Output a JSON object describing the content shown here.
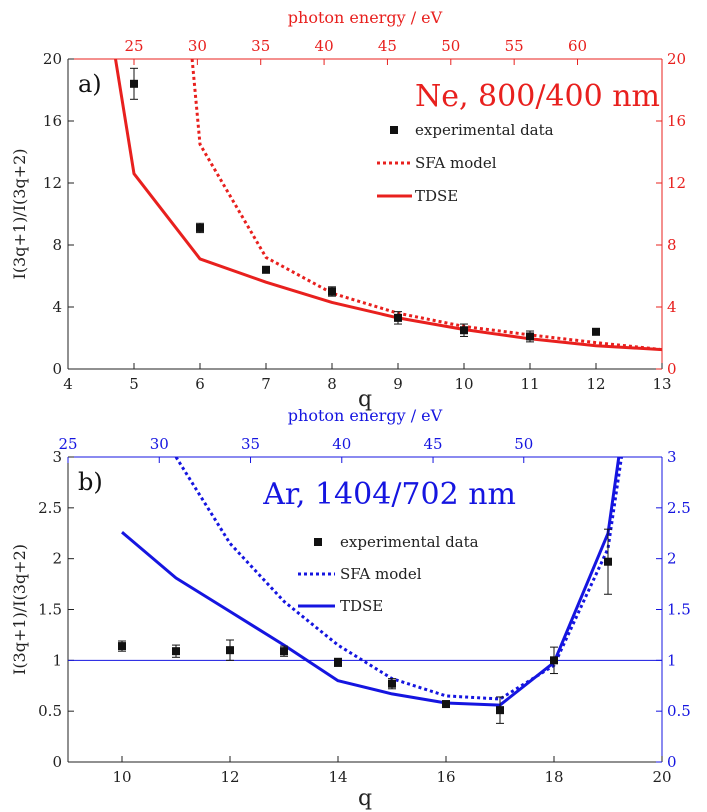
{
  "chart_data": [
    {
      "type": "line",
      "panel_label": "a)",
      "annotation": "Ne, 800/400 nm",
      "color": "#e8201e",
      "xlabel": "q",
      "ylabel": "I(3q+1)/I(3q+2)",
      "top_axis_label": "photon energy / eV",
      "xlim": [
        4,
        13
      ],
      "ylim": [
        0,
        20
      ],
      "x_ticks": [
        4,
        5,
        6,
        7,
        8,
        9,
        10,
        11,
        12,
        13
      ],
      "x_tick_labels": [
        "4",
        "5",
        "6",
        "7",
        "8",
        "9",
        "10",
        "11",
        "12",
        "13"
      ],
      "y_ticks": [
        0,
        4,
        8,
        12,
        16,
        20
      ],
      "y_tick_labels": [
        "0",
        "4",
        "8",
        "12",
        "16",
        "20"
      ],
      "top_ticks": [
        {
          "q": 5.0,
          "label": "25"
        },
        {
          "q": 5.96,
          "label": "30"
        },
        {
          "q": 6.92,
          "label": "35"
        },
        {
          "q": 7.88,
          "label": "40"
        },
        {
          "q": 8.84,
          "label": "45"
        },
        {
          "q": 9.8,
          "label": "50"
        },
        {
          "q": 10.76,
          "label": "55"
        },
        {
          "q": 11.72,
          "label": "60"
        }
      ],
      "legend": {
        "position": "right",
        "entries": [
          "experimental data",
          "SFA model",
          "TDSE"
        ]
      },
      "series": [
        {
          "name": "experimental data",
          "kind": "points",
          "x": [
            5,
            6,
            7,
            8,
            9,
            10,
            11,
            12
          ],
          "y": [
            18.4,
            9.1,
            6.4,
            5.0,
            3.3,
            2.5,
            2.1,
            2.4
          ],
          "err": [
            1.0,
            0.3,
            0.2,
            0.3,
            0.4,
            0.4,
            0.35,
            0.15
          ]
        },
        {
          "name": "SFA model",
          "kind": "dotted",
          "x": [
            5.88,
            6,
            7,
            8,
            9,
            10,
            11,
            12,
            13
          ],
          "y": [
            20,
            14.5,
            7.2,
            4.9,
            3.6,
            2.75,
            2.2,
            1.7,
            1.25
          ]
        },
        {
          "name": "TDSE",
          "kind": "solid",
          "x": [
            4.72,
            5,
            6,
            7,
            8,
            9,
            10,
            11,
            12,
            13
          ],
          "y": [
            20,
            12.6,
            7.1,
            5.6,
            4.3,
            3.3,
            2.55,
            1.95,
            1.5,
            1.25
          ]
        }
      ]
    },
    {
      "type": "line",
      "panel_label": "b)",
      "annotation": "Ar, 1404/702 nm",
      "color": "#1515e0",
      "xlabel": "q",
      "ylabel": "I(3q+1)/I(3q+2)",
      "top_axis_label": "photon energy / eV",
      "xlim": [
        9,
        20
      ],
      "ylim": [
        0,
        3
      ],
      "x_ticks": [
        10,
        12,
        14,
        16,
        18,
        20
      ],
      "x_tick_labels": [
        "10",
        "12",
        "14",
        "16",
        "18",
        "20"
      ],
      "y_ticks": [
        0,
        0.5,
        1,
        1.5,
        2,
        2.5,
        3
      ],
      "y_tick_labels": [
        "0",
        "0.5",
        "1",
        "1.5",
        "2",
        "2.5",
        "3"
      ],
      "top_ticks": [
        {
          "q": 9.0,
          "label": "25"
        },
        {
          "q": 10.69,
          "label": "30"
        },
        {
          "q": 12.38,
          "label": "35"
        },
        {
          "q": 14.07,
          "label": "40"
        },
        {
          "q": 15.76,
          "label": "45"
        },
        {
          "q": 17.44,
          "label": "50"
        }
      ],
      "reference_line": 1,
      "legend": {
        "position": "center",
        "entries": [
          "experimental data",
          "SFA model",
          "TDSE"
        ]
      },
      "series": [
        {
          "name": "experimental data",
          "kind": "points",
          "x": [
            10,
            11,
            12,
            13,
            14,
            15,
            16,
            17,
            18,
            19
          ],
          "y": [
            1.14,
            1.09,
            1.1,
            1.09,
            0.98,
            0.77,
            0.57,
            0.51,
            1.0,
            1.97
          ],
          "err": [
            0.05,
            0.06,
            0.1,
            0.05,
            0.04,
            0.05,
            0.03,
            0.13,
            0.13,
            0.32
          ]
        },
        {
          "name": "SFA model",
          "kind": "dotted",
          "x": [
            11,
            12,
            13,
            14,
            15,
            16,
            17,
            18,
            19,
            19.25
          ],
          "y": [
            3.0,
            2.15,
            1.58,
            1.15,
            0.82,
            0.65,
            0.62,
            0.95,
            2.1,
            3.0
          ]
        },
        {
          "name": "TDSE",
          "kind": "solid",
          "x": [
            10,
            11,
            12,
            13,
            14,
            15,
            16,
            17,
            18,
            19,
            19.2
          ],
          "y": [
            2.26,
            1.81,
            1.48,
            1.15,
            0.8,
            0.67,
            0.58,
            0.56,
            0.98,
            2.25,
            3.0
          ]
        }
      ]
    }
  ]
}
